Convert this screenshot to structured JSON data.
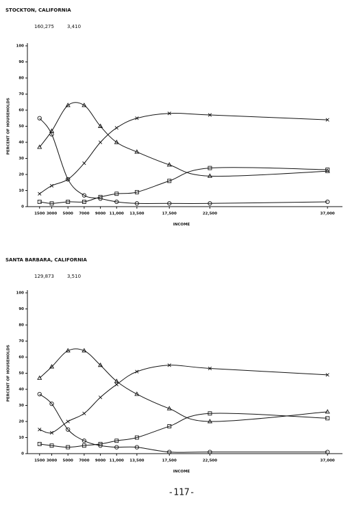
{
  "chart_data": [
    {
      "type": "line",
      "title": "STOCKTON, CALIFORNIA",
      "annotations": [
        "160,275",
        "3,410"
      ],
      "xlabel": "INCOME",
      "ylabel": "PERCENT OF HOUSEHOLDS",
      "color": "#111111",
      "grid": false,
      "x": [
        1500,
        3000,
        5000,
        7000,
        9000,
        11000,
        13500,
        17500,
        22500,
        37000
      ],
      "xlim": [
        0,
        38000
      ],
      "xticks": [
        1500,
        3000,
        5000,
        7000,
        9000,
        {
          "value": 11000,
          "label": "11,000"
        },
        {
          "value": 13500,
          "label": "13,500"
        },
        {
          "value": 17500,
          "label": "17,500"
        },
        {
          "value": 22500,
          "label": "22,500"
        },
        {
          "value": 37000,
          "label": "37,000"
        }
      ],
      "ylim": [
        0,
        100
      ],
      "yticks": [
        0,
        10,
        20,
        30,
        40,
        50,
        60,
        70,
        80,
        90,
        100
      ],
      "series": [
        {
          "marker": "triangle",
          "values": [
            37,
            47,
            63,
            63,
            50,
            40,
            34,
            26,
            19,
            22
          ]
        },
        {
          "marker": "cross",
          "values": [
            8,
            13,
            17,
            27,
            40,
            49,
            55,
            58,
            57,
            54
          ]
        },
        {
          "marker": "square",
          "values": [
            3,
            2,
            3,
            3,
            6,
            8,
            9,
            16,
            24,
            23
          ]
        },
        {
          "marker": "circle",
          "values": [
            55,
            45,
            17,
            7,
            5,
            3,
            2,
            2,
            2,
            3
          ]
        }
      ]
    },
    {
      "type": "line",
      "title": "SANTA BARBARA, CALIFORNIA",
      "annotations": [
        "129,873",
        "3,510"
      ],
      "xlabel": "INCOME",
      "ylabel": "PERCENT OF HOUSEHOLDS",
      "color": "#111111",
      "grid": false,
      "x": [
        1500,
        3000,
        5000,
        7000,
        9000,
        11000,
        13500,
        17500,
        22500,
        37000
      ],
      "xlim": [
        0,
        38000
      ],
      "xticks": [
        1500,
        3000,
        5000,
        7000,
        9000,
        {
          "value": 11000,
          "label": "11,000"
        },
        {
          "value": 13500,
          "label": "13,500"
        },
        {
          "value": 17500,
          "label": "17,500"
        },
        {
          "value": 22500,
          "label": "22,500"
        },
        {
          "value": 37000,
          "label": "37,000"
        }
      ],
      "ylim": [
        0,
        100
      ],
      "yticks": [
        0,
        10,
        20,
        30,
        40,
        50,
        60,
        70,
        80,
        90,
        100
      ],
      "series": [
        {
          "marker": "triangle",
          "values": [
            47,
            54,
            64,
            64,
            55,
            45,
            37,
            28,
            20,
            26
          ]
        },
        {
          "marker": "cross",
          "values": [
            15,
            13,
            20,
            25,
            35,
            43,
            51,
            55,
            53,
            49
          ]
        },
        {
          "marker": "square",
          "values": [
            6,
            5,
            4,
            5,
            6,
            8,
            10,
            17,
            25,
            22
          ]
        },
        {
          "marker": "circle",
          "values": [
            37,
            31,
            15,
            8,
            5,
            4,
            4,
            1,
            1,
            1
          ]
        }
      ]
    }
  ],
  "page_number": "-117-"
}
